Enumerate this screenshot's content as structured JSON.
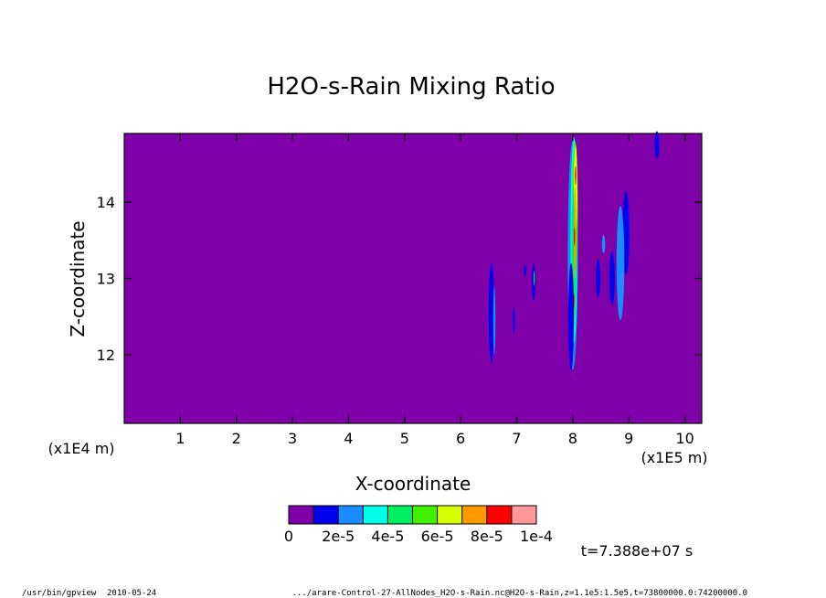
{
  "footer": {
    "program": "/usr/bin/gpview",
    "date": "2010-05-24",
    "source": ".../arare-Control-27-AllNodes_H2O-s-Rain.nc@H2O-s-Rain,z=1.1e5:1.5e5,t=73800000.0:74200000.0"
  },
  "time_label": "t=7.388e+07 s",
  "chart_data": {
    "type": "heatmap",
    "title": "H2O-s-Rain Mixing Ratio",
    "xlabel": "X-coordinate",
    "ylabel": "Z-coordinate",
    "x_scale_label": "(x1E5 m)",
    "y_scale_label": "(x1E4 m)",
    "xlim": [
      0,
      10.3
    ],
    "ylim": [
      11.1,
      14.9
    ],
    "x_ticks": [
      "1",
      "2",
      "3",
      "4",
      "5",
      "6",
      "7",
      "8",
      "9",
      "10"
    ],
    "y_ticks": [
      "12",
      "13",
      "14"
    ],
    "background_color": "#7f00a8",
    "colorbar": {
      "levels": [
        "0",
        "2e-5",
        "4e-5",
        "6e-5",
        "8e-5",
        "1e-4"
      ],
      "colors": [
        "#7f00a8",
        "#0000f0",
        "#1a8cff",
        "#00ffe6",
        "#00f062",
        "#40f000",
        "#d6ff00",
        "#ff9900",
        "#ff0000",
        "#ff9999"
      ]
    },
    "features": [
      {
        "shape": "blob",
        "color": "#1a8cff",
        "x": 8.0,
        "y": 13.3,
        "rx": 0.09,
        "ry": 1.5
      },
      {
        "shape": "blob",
        "color": "#00ffe6",
        "x": 8.02,
        "y": 13.5,
        "rx": 0.06,
        "ry": 1.35
      },
      {
        "shape": "blob",
        "color": "#40f000",
        "x": 8.04,
        "y": 13.9,
        "rx": 0.05,
        "ry": 0.9
      },
      {
        "shape": "blob",
        "color": "#00f062",
        "x": 8.02,
        "y": 13.3,
        "rx": 0.045,
        "ry": 0.9
      },
      {
        "shape": "blob",
        "color": "#d6ff00",
        "x": 8.05,
        "y": 14.2,
        "rx": 0.03,
        "ry": 0.55
      },
      {
        "shape": "blob",
        "color": "#ff9900",
        "x": 8.04,
        "y": 13.6,
        "rx": 0.018,
        "ry": 0.6
      },
      {
        "shape": "blob",
        "color": "#ff0000",
        "x": 8.05,
        "y": 14.35,
        "rx": 0.012,
        "ry": 0.12
      },
      {
        "shape": "blob",
        "color": "#ff0000",
        "x": 8.03,
        "y": 13.55,
        "rx": 0.012,
        "ry": 0.12
      },
      {
        "shape": "blob",
        "color": "#ff0000",
        "x": 8.02,
        "y": 12.7,
        "rx": 0.01,
        "ry": 0.1
      },
      {
        "shape": "blob",
        "color": "#0000f0",
        "x": 7.97,
        "y": 12.5,
        "rx": 0.05,
        "ry": 0.7
      },
      {
        "shape": "blob",
        "color": "#0000f0",
        "x": 8.95,
        "y": 13.6,
        "rx": 0.06,
        "ry": 0.55
      },
      {
        "shape": "blob",
        "color": "#1a8cff",
        "x": 8.85,
        "y": 13.2,
        "rx": 0.07,
        "ry": 0.75
      },
      {
        "shape": "blob",
        "color": "#0000f0",
        "x": 8.7,
        "y": 13.0,
        "rx": 0.05,
        "ry": 0.35
      },
      {
        "shape": "blob",
        "color": "#0000f0",
        "x": 8.45,
        "y": 13.0,
        "rx": 0.04,
        "ry": 0.25
      },
      {
        "shape": "blob",
        "color": "#1a8cff",
        "x": 8.55,
        "y": 13.45,
        "rx": 0.03,
        "ry": 0.12
      },
      {
        "shape": "blob",
        "color": "#0000f0",
        "x": 9.5,
        "y": 14.75,
        "rx": 0.04,
        "ry": 0.18
      },
      {
        "shape": "blob",
        "color": "#0000f0",
        "x": 6.55,
        "y": 12.55,
        "rx": 0.05,
        "ry": 0.65
      },
      {
        "shape": "blob",
        "color": "#1a8cff",
        "x": 6.6,
        "y": 12.45,
        "rx": 0.02,
        "ry": 0.45
      },
      {
        "shape": "blob",
        "color": "#0000f0",
        "x": 6.95,
        "y": 12.45,
        "rx": 0.02,
        "ry": 0.18
      },
      {
        "shape": "blob",
        "color": "#0000f0",
        "x": 7.3,
        "y": 12.95,
        "rx": 0.03,
        "ry": 0.25
      },
      {
        "shape": "blob",
        "color": "#00f062",
        "x": 7.31,
        "y": 13.0,
        "rx": 0.01,
        "ry": 0.1
      },
      {
        "shape": "blob",
        "color": "#0000f0",
        "x": 7.15,
        "y": 13.1,
        "rx": 0.02,
        "ry": 0.08
      }
    ]
  }
}
